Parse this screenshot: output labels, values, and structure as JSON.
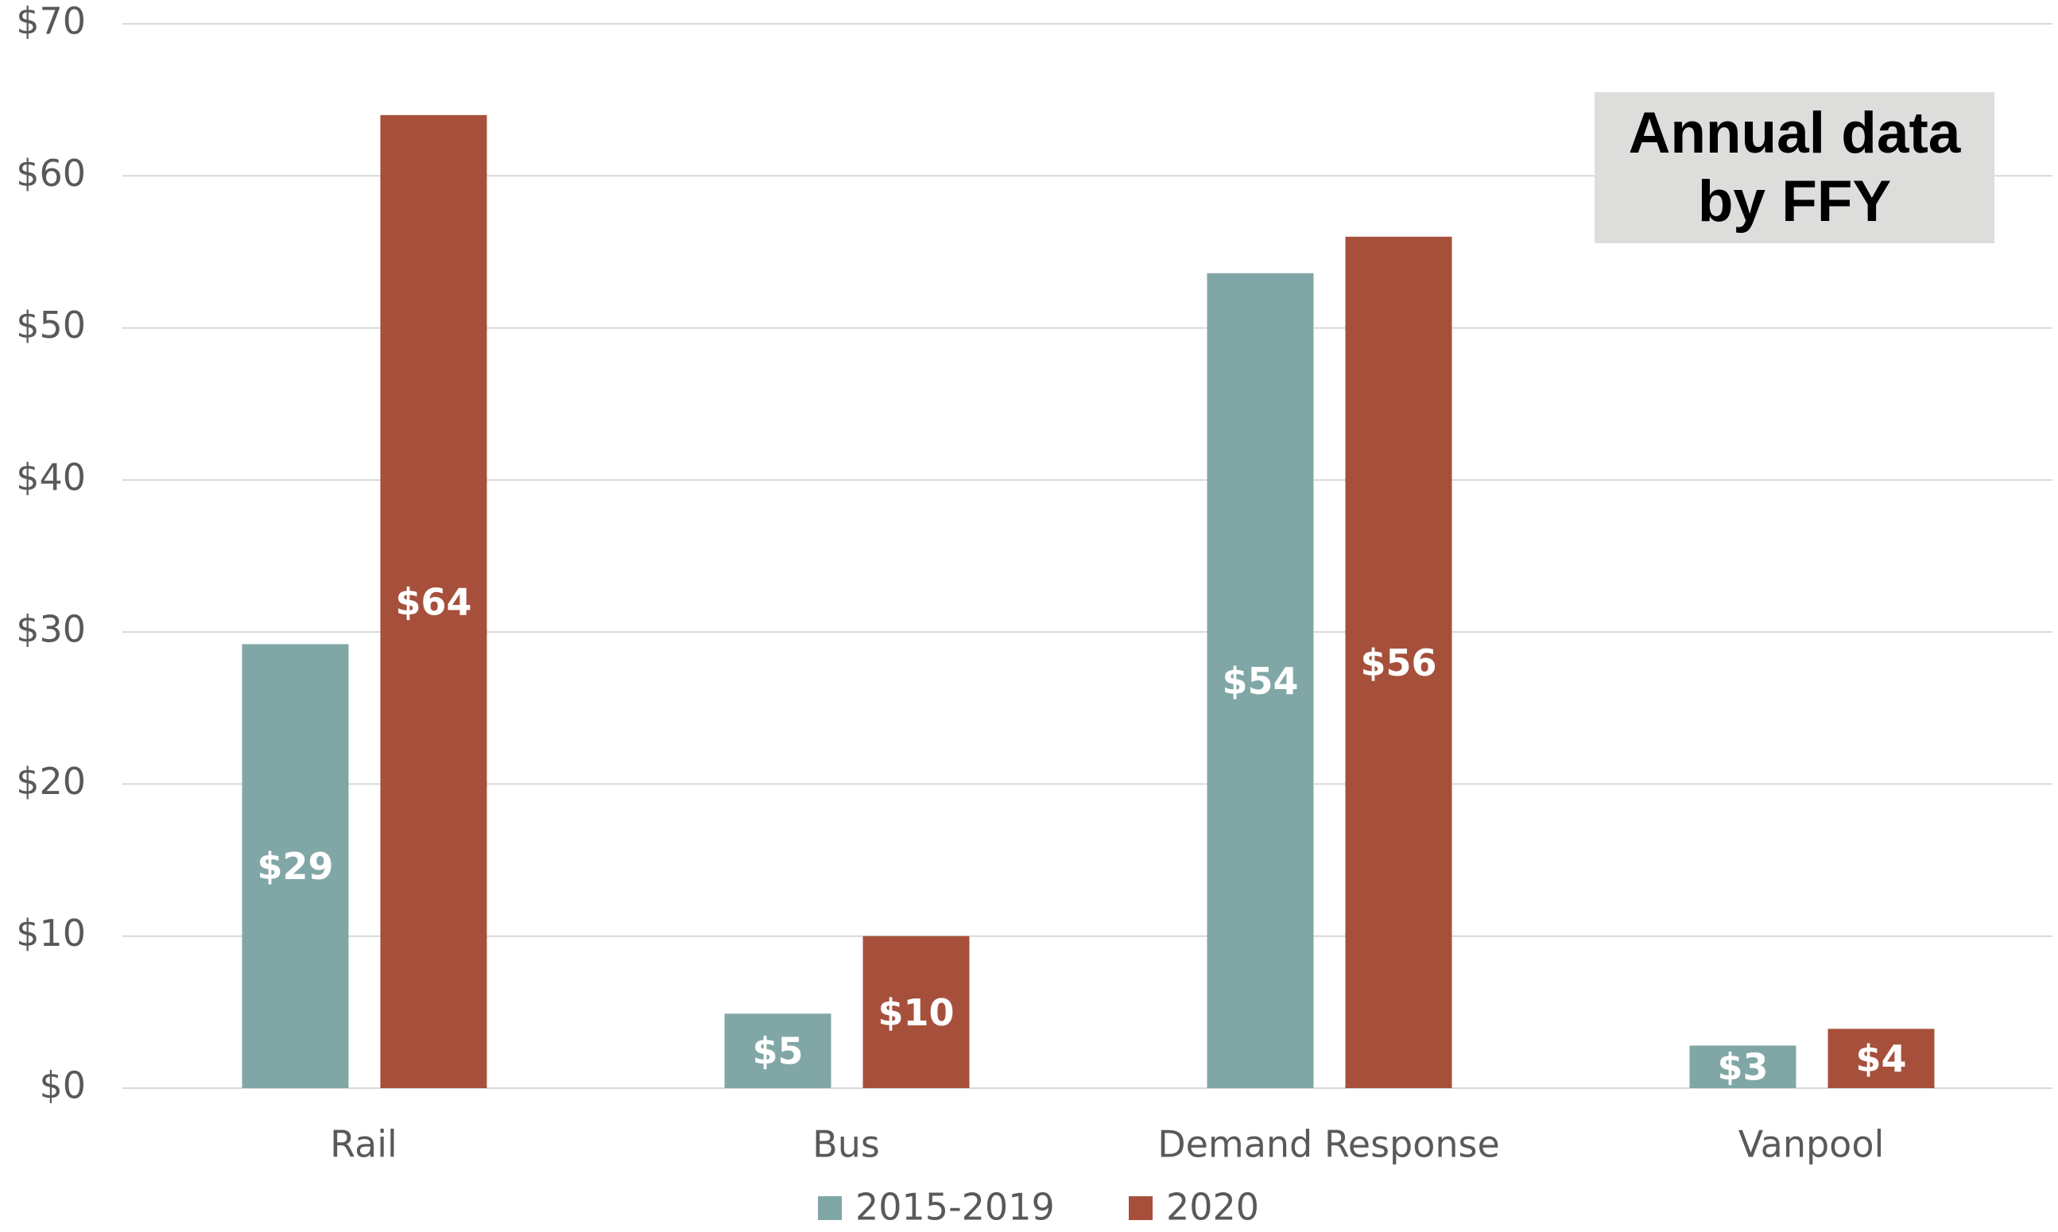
{
  "chart_data": {
    "type": "bar",
    "categories": [
      "Rail",
      "Bus",
      "Demand Response",
      "Vanpool"
    ],
    "series": [
      {
        "name": "2015-2019",
        "color": "#80a7a6",
        "values": [
          29.2,
          4.9,
          53.6,
          2.8
        ],
        "value_labels": [
          "$29",
          "$5",
          "$54",
          "$3"
        ]
      },
      {
        "name": "2020",
        "color": "#a6503c",
        "values": [
          64,
          10,
          56,
          3.9
        ],
        "value_labels": [
          "$64",
          "$10",
          "$56",
          "$4"
        ]
      }
    ],
    "ylim": [
      0,
      70
    ],
    "yticks": [
      {
        "value": 0,
        "label": "$0"
      },
      {
        "value": 10,
        "label": "$10"
      },
      {
        "value": 20,
        "label": "$20"
      },
      {
        "value": 30,
        "label": "$30"
      },
      {
        "value": 40,
        "label": "$40"
      },
      {
        "value": 50,
        "label": "$50"
      },
      {
        "value": 60,
        "label": "$60"
      },
      {
        "value": 70,
        "label": "$70"
      }
    ],
    "grid": true,
    "legend": "bottom",
    "annotation": "Annual data by FFY"
  }
}
